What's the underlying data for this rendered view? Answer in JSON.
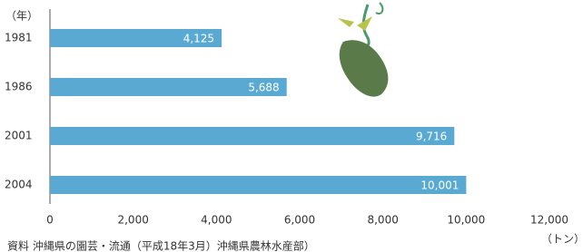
{
  "chart_data": {
    "type": "bar",
    "orientation": "horizontal",
    "y_label": "（年）",
    "x_label": "（トン）",
    "source": "資料 沖縄県の園芸・流通（平成18年3月）沖縄県農林水産部）",
    "categories": [
      "1981",
      "1986",
      "2001",
      "2004"
    ],
    "values": [
      4125,
      5688,
      9716,
      10001
    ],
    "value_labels": [
      "4,125",
      "5,688",
      "9,716",
      "10,001"
    ],
    "color": "#5aa9d3",
    "xlim": [
      0,
      12000
    ],
    "xticks": [
      0,
      {
        "value": 2000,
        "label": "2,000"
      },
      {
        "value": 4000,
        "label": "4,000"
      },
      {
        "value": 6000,
        "label": "6,000"
      },
      {
        "value": 8000,
        "label": "8,000"
      },
      {
        "value": 10000,
        "label": "10,000"
      },
      {
        "value": 12000,
        "label": "12,000"
      }
    ]
  }
}
